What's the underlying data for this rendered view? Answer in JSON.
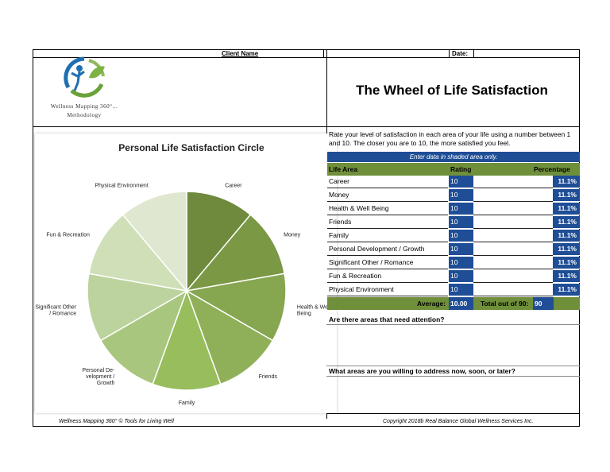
{
  "header": {
    "client_label": "Client Name",
    "date_label": "Date:",
    "logo_line1": "Wellness Mapping 360°...",
    "logo_line2": "Methodology",
    "title": "The Wheel of Life Satisfaction"
  },
  "instructions": "Rate your level of satisfaction in each area of your life using a number between 1 and 10.  The closer you are to 10, the more satisfied you feel.",
  "table": {
    "banner": "Enter data in shaded area only.",
    "col_area": "Life Area",
    "col_rating": "Rating",
    "col_percent": "Percentage",
    "rows": [
      {
        "area": "Career",
        "rating": "10",
        "percent": "11.1%"
      },
      {
        "area": "Money",
        "rating": "10",
        "percent": "11.1%"
      },
      {
        "area": "Health & Well Being",
        "rating": "10",
        "percent": "11.1%"
      },
      {
        "area": "Friends",
        "rating": "10",
        "percent": "11.1%"
      },
      {
        "area": "Family",
        "rating": "10",
        "percent": "11.1%"
      },
      {
        "area": "Personal Development / Growth",
        "rating": "10",
        "percent": "11.1%"
      },
      {
        "area": "Significant Other / Romance",
        "rating": "10",
        "percent": "11.1%"
      },
      {
        "area": "Fun & Recreation",
        "rating": "10",
        "percent": "11.1%"
      },
      {
        "area": "Physical Environment",
        "rating": "10",
        "percent": "11.1%"
      }
    ],
    "average_label": "Average:",
    "average_value": "10.00",
    "total_label": "Total out of 90:",
    "total_value": "90"
  },
  "questions": {
    "q1": "Are there areas that need attention?",
    "q2": "What areas are you willing to address now, soon, or later?"
  },
  "footer": {
    "left": "Wellness Mapping 360° © Tools for Living Well",
    "right": "Copyright 2018b Real Balance Global Wellness Services Inc."
  },
  "chart_data": {
    "type": "pie",
    "title": "Personal Life Satisfaction Circle",
    "categories": [
      "Career",
      "Money",
      "Health & Well Being",
      "Friends",
      "Family",
      "Personal Development / Growth",
      "Significant Other / Romance",
      "Fun & Recreation",
      "Physical Environment"
    ],
    "labels": [
      [
        "Career"
      ],
      [
        "Money"
      ],
      [
        "Health & Well",
        "Being"
      ],
      [
        "Friends"
      ],
      [
        "Family"
      ],
      [
        "Personal De-",
        "velopment /",
        "Growth"
      ],
      [
        "Significant Other",
        "/ Romance"
      ],
      [
        "Fun & Recreation"
      ],
      [
        "Physical Environment"
      ]
    ],
    "values": [
      10,
      10,
      10,
      10,
      10,
      10,
      10,
      10,
      10
    ],
    "colors": [
      "#6f8a3c",
      "#7b9845",
      "#86a650",
      "#8fb058",
      "#98bd5c",
      "#a9c67f",
      "#bcd39d",
      "#cfdfb7",
      "#dfe7d0"
    ]
  }
}
